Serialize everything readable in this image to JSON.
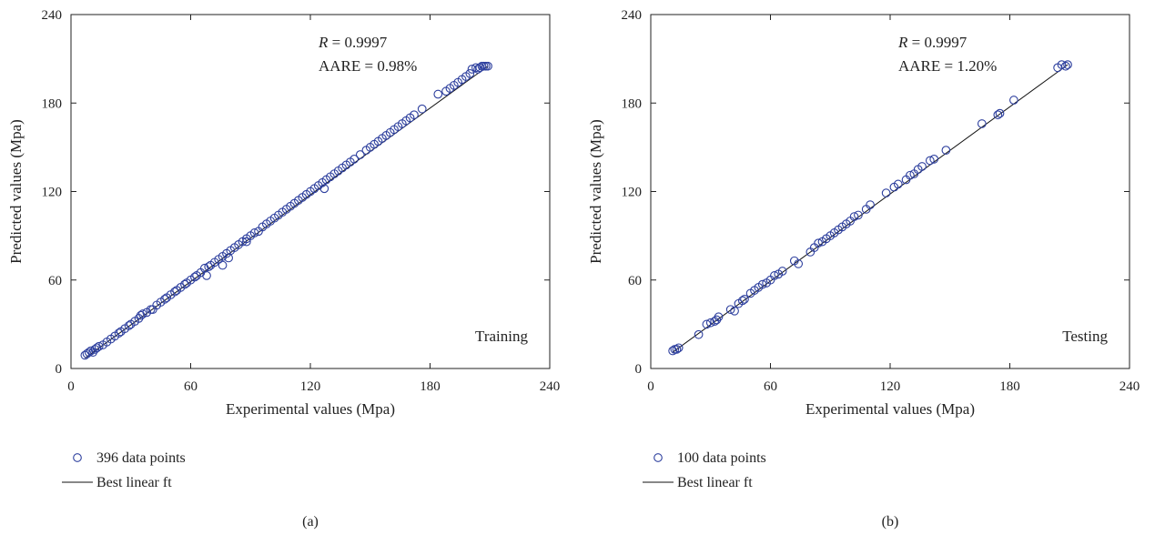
{
  "chart_data": [
    {
      "type": "scatter",
      "panel_label": "(a)",
      "xlabel": "Experimental values (Mpa)",
      "ylabel": "Predicted values (Mpa)",
      "xlim": [
        0,
        240
      ],
      "ylim": [
        0,
        240
      ],
      "xticks": [
        "0",
        "60",
        "120",
        "180",
        "240"
      ],
      "yticks": [
        "0",
        "60",
        "120",
        "180",
        "240"
      ],
      "grid": false,
      "annotations": {
        "r_label": "R",
        "r_value": " = 0.9997",
        "aare": "AARE = 0.98%",
        "set_name": "Training"
      },
      "legend": {
        "points_label": "396 data points",
        "line_label": "Best linear ft",
        "placement": "below"
      },
      "fit_line": {
        "x": [
          7,
          209
        ],
        "y": [
          7,
          205
        ]
      },
      "series": [
        {
          "marker": "open-circle",
          "color": "#2d3f9e",
          "points": [
            [
              7,
              9
            ],
            [
              8,
              10
            ],
            [
              9,
              11
            ],
            [
              10,
              12
            ],
            [
              11,
              11
            ],
            [
              12,
              13
            ],
            [
              13,
              14
            ],
            [
              14,
              15
            ],
            [
              16,
              16
            ],
            [
              18,
              18
            ],
            [
              20,
              20
            ],
            [
              22,
              22
            ],
            [
              24,
              24
            ],
            [
              25,
              25
            ],
            [
              27,
              27
            ],
            [
              29,
              29
            ],
            [
              30,
              30
            ],
            [
              32,
              32
            ],
            [
              34,
              34
            ],
            [
              35,
              36
            ],
            [
              36,
              37
            ],
            [
              38,
              38
            ],
            [
              40,
              40
            ],
            [
              41,
              40
            ],
            [
              43,
              43
            ],
            [
              45,
              45
            ],
            [
              47,
              47
            ],
            [
              48,
              48
            ],
            [
              50,
              50
            ],
            [
              52,
              52
            ],
            [
              53,
              53
            ],
            [
              55,
              55
            ],
            [
              57,
              57
            ],
            [
              58,
              58
            ],
            [
              60,
              60
            ],
            [
              62,
              62
            ],
            [
              63,
              63
            ],
            [
              65,
              65
            ],
            [
              67,
              68
            ],
            [
              68,
              63
            ],
            [
              69,
              69
            ],
            [
              70,
              70
            ],
            [
              72,
              72
            ],
            [
              74,
              74
            ],
            [
              76,
              70
            ],
            [
              76,
              76
            ],
            [
              78,
              78
            ],
            [
              79,
              75
            ],
            [
              80,
              80
            ],
            [
              82,
              82
            ],
            [
              84,
              84
            ],
            [
              86,
              86
            ],
            [
              88,
              88
            ],
            [
              88,
              86
            ],
            [
              90,
              90
            ],
            [
              92,
              92
            ],
            [
              94,
              93
            ],
            [
              96,
              96
            ],
            [
              98,
              98
            ],
            [
              100,
              100
            ],
            [
              102,
              102
            ],
            [
              104,
              104
            ],
            [
              106,
              106
            ],
            [
              108,
              108
            ],
            [
              110,
              110
            ],
            [
              112,
              112
            ],
            [
              114,
              114
            ],
            [
              116,
              116
            ],
            [
              118,
              118
            ],
            [
              120,
              120
            ],
            [
              122,
              122
            ],
            [
              124,
              124
            ],
            [
              126,
              126
            ],
            [
              127,
              122
            ],
            [
              128,
              128
            ],
            [
              130,
              130
            ],
            [
              132,
              132
            ],
            [
              134,
              134
            ],
            [
              136,
              136
            ],
            [
              138,
              138
            ],
            [
              140,
              140
            ],
            [
              142,
              142
            ],
            [
              145,
              145
            ],
            [
              148,
              148
            ],
            [
              150,
              150
            ],
            [
              152,
              152
            ],
            [
              154,
              154
            ],
            [
              156,
              156
            ],
            [
              158,
              158
            ],
            [
              160,
              160
            ],
            [
              162,
              162
            ],
            [
              164,
              164
            ],
            [
              166,
              166
            ],
            [
              168,
              168
            ],
            [
              170,
              170
            ],
            [
              172,
              172
            ],
            [
              176,
              176
            ],
            [
              184,
              186
            ],
            [
              188,
              188
            ],
            [
              190,
              190
            ],
            [
              192,
              192
            ],
            [
              194,
              194
            ],
            [
              196,
              196
            ],
            [
              198,
              198
            ],
            [
              200,
              200
            ],
            [
              201,
              203
            ],
            [
              203,
              204
            ],
            [
              204,
              203
            ],
            [
              205,
              204
            ],
            [
              206,
              205
            ],
            [
              207,
              205
            ],
            [
              208,
              205
            ],
            [
              209,
              205
            ]
          ]
        }
      ]
    },
    {
      "type": "scatter",
      "panel_label": "(b)",
      "xlabel": "Experimental values (Mpa)",
      "ylabel": "Predicted values (Mpa)",
      "xlim": [
        0,
        240
      ],
      "ylim": [
        0,
        240
      ],
      "xticks": [
        "0",
        "60",
        "120",
        "180",
        "240"
      ],
      "yticks": [
        "0",
        "60",
        "120",
        "180",
        "240"
      ],
      "grid": false,
      "annotations": {
        "r_label": "R",
        "r_value": " = 0.9997",
        "aare": "AARE = 1.20%",
        "set_name": "Testing"
      },
      "legend": {
        "points_label": "100 data points",
        "line_label": "Best linear ft",
        "placement": "below"
      },
      "fit_line": {
        "x": [
          11,
          209
        ],
        "y": [
          11,
          206
        ]
      },
      "series": [
        {
          "marker": "open-circle",
          "color": "#2d3f9e",
          "points": [
            [
              11,
              12
            ],
            [
              12,
              13
            ],
            [
              13,
              13
            ],
            [
              14,
              14
            ],
            [
              24,
              23
            ],
            [
              28,
              30
            ],
            [
              30,
              31
            ],
            [
              32,
              32
            ],
            [
              33,
              33
            ],
            [
              34,
              35
            ],
            [
              40,
              40
            ],
            [
              42,
              39
            ],
            [
              44,
              44
            ],
            [
              46,
              46
            ],
            [
              47,
              47
            ],
            [
              50,
              51
            ],
            [
              52,
              53
            ],
            [
              54,
              55
            ],
            [
              56,
              57
            ],
            [
              58,
              58
            ],
            [
              60,
              60
            ],
            [
              62,
              63
            ],
            [
              64,
              64
            ],
            [
              66,
              66
            ],
            [
              72,
              73
            ],
            [
              74,
              71
            ],
            [
              80,
              79
            ],
            [
              82,
              82
            ],
            [
              84,
              85
            ],
            [
              86,
              86
            ],
            [
              88,
              88
            ],
            [
              90,
              90
            ],
            [
              92,
              92
            ],
            [
              94,
              94
            ],
            [
              96,
              96
            ],
            [
              98,
              98
            ],
            [
              100,
              100
            ],
            [
              102,
              103
            ],
            [
              104,
              104
            ],
            [
              108,
              108
            ],
            [
              110,
              111
            ],
            [
              118,
              119
            ],
            [
              122,
              123
            ],
            [
              124,
              125
            ],
            [
              128,
              128
            ],
            [
              130,
              131
            ],
            [
              132,
              132
            ],
            [
              134,
              135
            ],
            [
              136,
              137
            ],
            [
              140,
              141
            ],
            [
              142,
              142
            ],
            [
              148,
              148
            ],
            [
              166,
              166
            ],
            [
              174,
              172
            ],
            [
              175,
              173
            ],
            [
              182,
              182
            ],
            [
              204,
              204
            ],
            [
              206,
              206
            ],
            [
              208,
              205
            ],
            [
              209,
              206
            ]
          ]
        }
      ]
    }
  ]
}
